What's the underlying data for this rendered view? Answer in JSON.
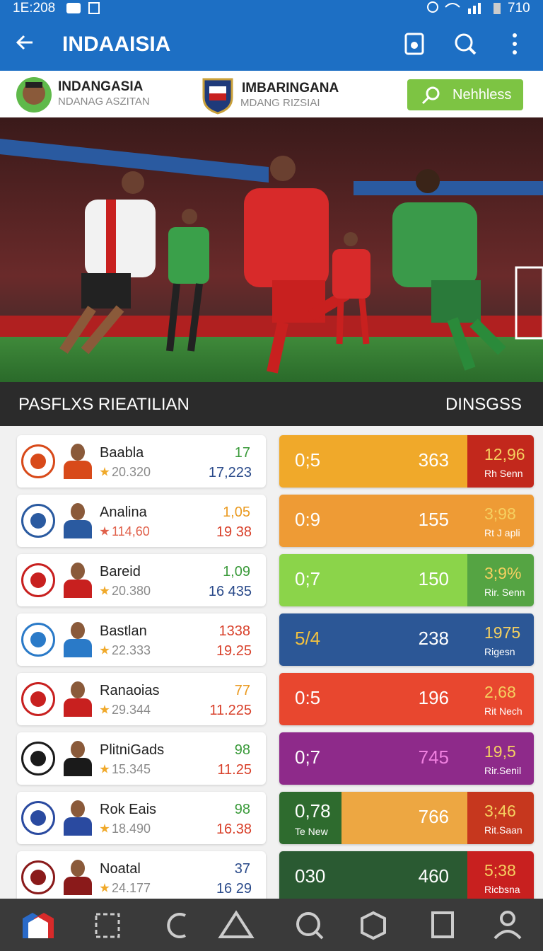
{
  "status_bar": {
    "time": "1E:208",
    "battery": "710"
  },
  "app_bar": {
    "title": "INDAAISIA"
  },
  "match": {
    "home": {
      "name": "INDANGASIA",
      "subtitle": "NDANAG ASZITAN"
    },
    "away": {
      "name": "IMBARINGANA",
      "subtitle": "MDANG RIZSIAI"
    },
    "button": "Nehhless"
  },
  "section": {
    "title": "PASFLXS RIEATILIAN",
    "action": "DINSGSS"
  },
  "rows": [
    {
      "name": "Baabla",
      "rating": "20.320",
      "rating_color": "#8a8a8a",
      "top": "17",
      "top_color": "#3a9a3a",
      "bottom": "17,223",
      "bottom_color": "#2a4a8a",
      "score": "0;5",
      "count": "363",
      "side": "12,96",
      "side_sub": "Rh Senn",
      "colors": [
        "#f0a92a",
        "#f0a92a",
        "#c2281c"
      ]
    },
    {
      "name": "Analina",
      "rating": "114,60",
      "rating_color": "#e0604a",
      "top": "1,05",
      "top_color": "#ea9a20",
      "bottom": "19 38",
      "bottom_color": "#d8402a",
      "score": "0:9",
      "count": "155",
      "side": "3;98",
      "side_sub": "Rt J apli",
      "colors": [
        "#ee9b35",
        "#ee9b35",
        "#ee9b35"
      ]
    },
    {
      "name": "Bareid",
      "rating": "20.380",
      "rating_color": "#8a8a8a",
      "top": "1,09",
      "top_color": "#3a9a3a",
      "bottom": "16 435",
      "bottom_color": "#2a4a8a",
      "score": "0;7",
      "count": "150",
      "side": "3;9%",
      "side_sub": "Rir. Senn",
      "colors": [
        "#8bd44a",
        "#8bd44a",
        "#55a443"
      ]
    },
    {
      "name": "Bastlan",
      "rating": "22.333",
      "rating_color": "#8a8a8a",
      "top": "1338",
      "top_color": "#d8402a",
      "bottom": "19.25",
      "bottom_color": "#d8402a",
      "score": "5/4",
      "count": "238",
      "side": "1975",
      "side_sub": "Rigesn",
      "colors": [
        "#2c5796",
        "#2c5796",
        "#2c5796"
      ]
    },
    {
      "name": "Ranaoias",
      "rating": "29.344",
      "rating_color": "#8a8a8a",
      "top": "77",
      "top_color": "#ea9a20",
      "bottom": "11.225",
      "bottom_color": "#d8402a",
      "score": "0:5",
      "count": "196",
      "side": "2,68",
      "side_sub": "Rit Nech",
      "colors": [
        "#e8472f",
        "#e8472f",
        "#e8472f"
      ]
    },
    {
      "name": "PlitniGads",
      "rating": "15.345",
      "rating_color": "#8a8a8a",
      "top": "98",
      "top_color": "#3a9a3a",
      "bottom": "11.25",
      "bottom_color": "#d8402a",
      "score": "0;7",
      "count": "745",
      "side": "19,5",
      "side_sub": "Rir.Senil",
      "colors": [
        "#8e2a8a",
        "#8e2a8a",
        "#8e2a8a"
      ]
    },
    {
      "name": "Rok Eais",
      "rating": "18.490",
      "rating_color": "#8a8a8a",
      "top": "98",
      "top_color": "#3a9a3a",
      "bottom": "16.38",
      "bottom_color": "#d8402a",
      "score": "0,78",
      "score_sub": "Te New",
      "count": "766",
      "side": "3;46",
      "side_sub": "Rit.Saan",
      "colors": [
        "#2e6b2e",
        "#eda742",
        "#c6371e"
      ]
    },
    {
      "name": "Noatal",
      "rating": "24.177",
      "rating_color": "#8a8a8a",
      "top": "37",
      "top_color": "#2a4a8a",
      "bottom": "16 29",
      "bottom_color": "#2a4a8a",
      "score": "030",
      "count": "460",
      "side": "5;38",
      "side_sub": "Ricbsna",
      "colors": [
        "#2a5a32",
        "#2a5a32",
        "#c8201f"
      ]
    }
  ]
}
